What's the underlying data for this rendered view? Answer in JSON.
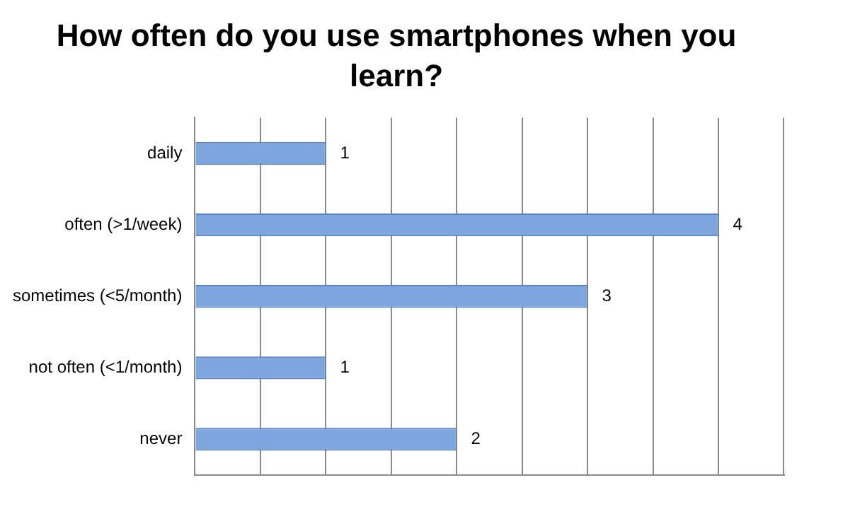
{
  "chart_data": {
    "type": "bar",
    "orientation": "horizontal",
    "title": "How often do you use smartphones when you learn?",
    "categories": [
      "daily",
      "often (>1/week)",
      "sometimes (<5/month)",
      "not often (<1/month)",
      "never"
    ],
    "values": [
      1,
      4,
      3,
      1,
      2
    ],
    "color": "#7ea6de",
    "xlim": [
      0,
      4.5
    ],
    "xticks": [
      {
        "value": 0,
        "label": null
      },
      {
        "value": 0.5,
        "label": null
      },
      {
        "value": 1,
        "label": null
      },
      {
        "value": 1.5,
        "label": null
      },
      {
        "value": 2,
        "label": null
      },
      {
        "value": 2.5,
        "label": null
      },
      {
        "value": 3,
        "label": null
      },
      {
        "value": 3.5,
        "label": null
      },
      {
        "value": 4,
        "label": null
      }
    ],
    "grid": "x",
    "tick_labels": "y",
    "data_labels": true,
    "legend": false
  }
}
